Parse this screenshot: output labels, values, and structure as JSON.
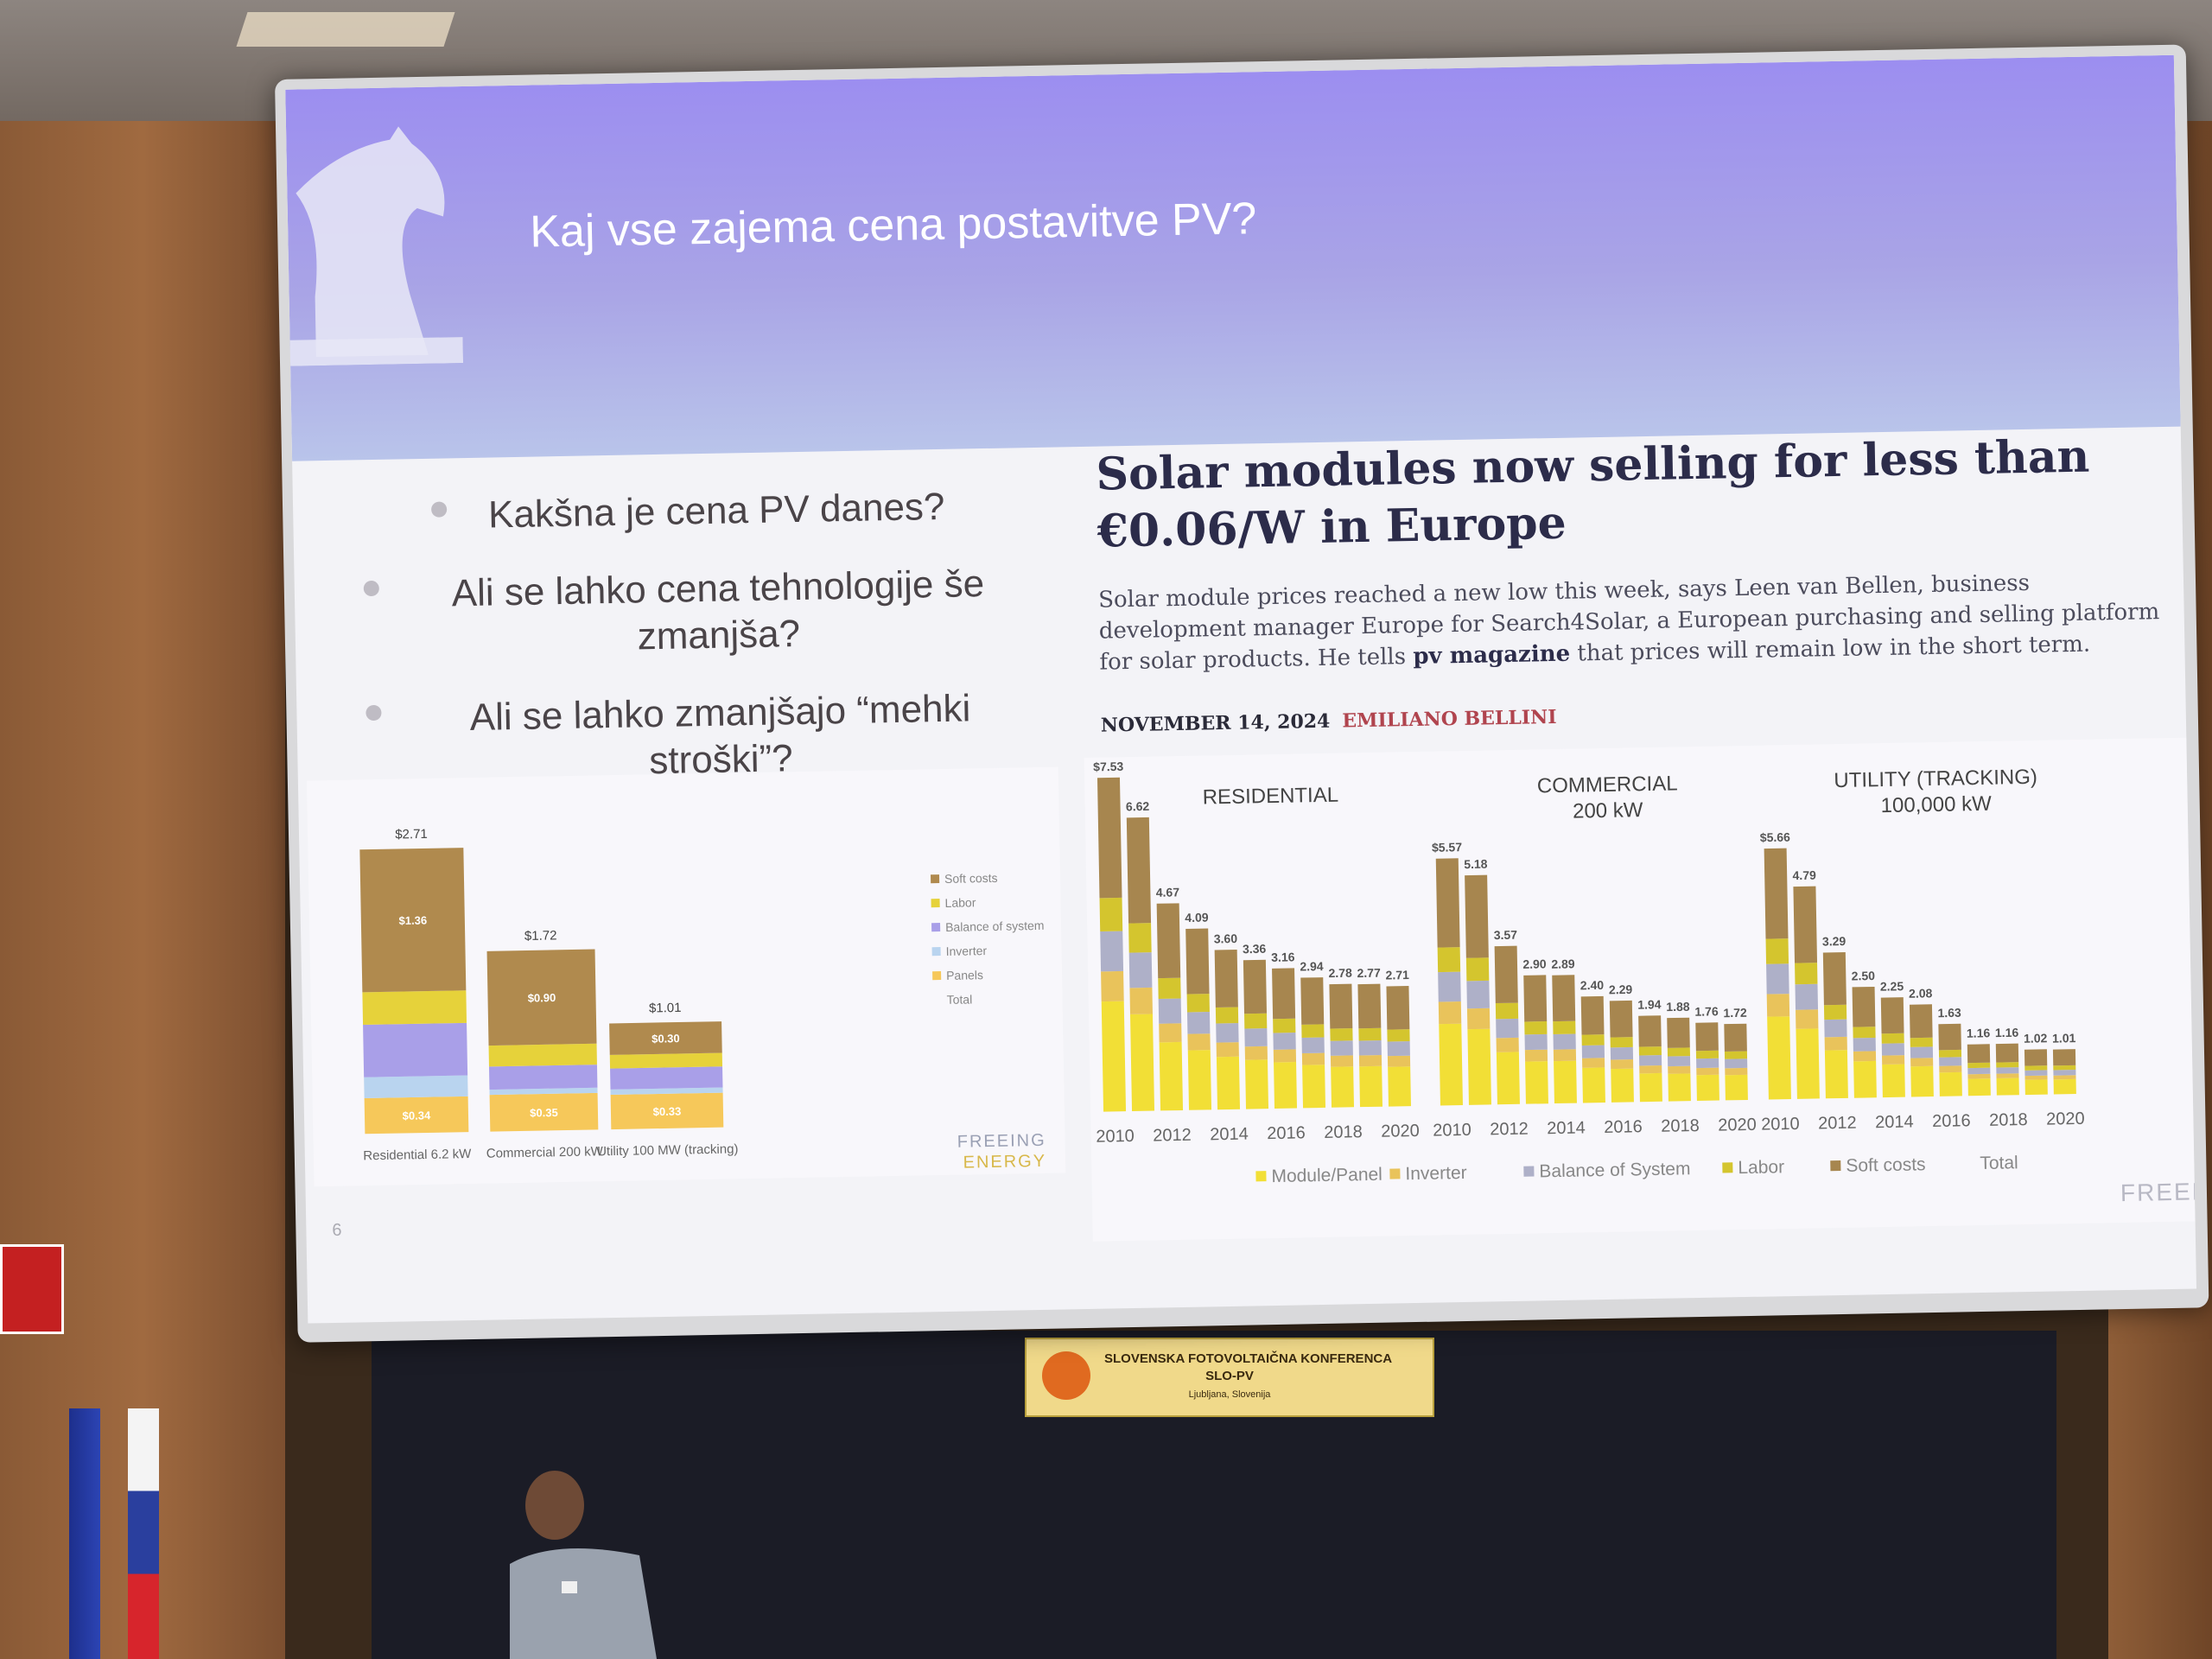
{
  "slide": {
    "title": "Kaj vse zajema cena postavitve PV?",
    "questions": [
      "Kakšna je cena PV danes?",
      "Ali se lahko cena tehnologije še zmanjša?",
      "Ali se lahko zmanjšajo “mehki stroški”?"
    ],
    "page_number": "6",
    "watermark": "FREEIN"
  },
  "news": {
    "headline": "Solar modules now selling for less than €0.06/W in Europe",
    "body_pre": "Solar module prices reached a new low this week, says Leen van Bellen, business development manager Europe for Search4Solar, a European purchasing and selling platform for solar products. He tells ",
    "body_bold": "pv magazine",
    "body_post": " that prices will remain low in the short term.",
    "date": "NOVEMBER 14, 2024",
    "author": "EMILIANO BELLINI"
  },
  "banner": {
    "line1": "SLOVENSKA FOTOVOLTAIČNA KONFERENCA",
    "line2": "SLO-PV",
    "line3": "Ljubljana, Slovenija"
  },
  "colors": {
    "soft_costs": "#b08a4e",
    "labor": "#e6d23a",
    "bos": "#a99fe8",
    "inverter": "#b9d4ef",
    "panels": "#f6c85a",
    "module": "#f2df36",
    "inverter_r": "#e9c35b",
    "bos_r": "#aeb0c8",
    "labor_r": "#d4c52e",
    "soft_r": "#a7864f"
  },
  "chart_data": [
    {
      "type": "bar",
      "stacked": true,
      "categories": [
        "Residential 6.2 kW",
        "Commercial 200 kW",
        "Utility 100 MW (tracking)"
      ],
      "totals": [
        "$2.71",
        "$1.72",
        "$1.01"
      ],
      "series": [
        {
          "name": "Panels",
          "values": [
            0.34,
            0.35,
            0.33
          ],
          "labels": [
            "$0.34",
            "$0.35",
            "$0.33"
          ]
        },
        {
          "name": "Inverter",
          "values": [
            0.2,
            0.05,
            0.05
          ],
          "labels": [
            "",
            "",
            ""
          ]
        },
        {
          "name": "Balance of system",
          "values": [
            0.5,
            0.22,
            0.2
          ],
          "labels": [
            "",
            "",
            ""
          ]
        },
        {
          "name": "Labor",
          "values": [
            0.31,
            0.2,
            0.13
          ],
          "labels": [
            "",
            "",
            ""
          ]
        },
        {
          "name": "Soft costs",
          "values": [
            1.36,
            0.9,
            0.3
          ],
          "labels": [
            "$1.36",
            "$0.90",
            "$0.30"
          ]
        }
      ],
      "legend": [
        "Soft costs",
        "Labor",
        "Balance of system",
        "Inverter",
        "Panels",
        "Total"
      ],
      "ylim": [
        0,
        2.8
      ],
      "source": "FREEING ENERGY"
    },
    {
      "type": "bar",
      "stacked": true,
      "panels": [
        {
          "title": "RESIDENTIAL",
          "totals": [
            7.53,
            6.62,
            4.67,
            4.09,
            3.6,
            3.36,
            3.16,
            2.94,
            2.78,
            2.77,
            2.71
          ],
          "total_labels": [
            "$7.53",
            "6.62",
            "4.67",
            "4.09",
            "3.60",
            "3.36",
            "3.16",
            "2.94",
            "2.78",
            "2.77",
            "2.71"
          ]
        },
        {
          "title": "COMMERCIAL",
          "subtitle": "200 kW",
          "totals": [
            5.57,
            5.18,
            3.57,
            2.9,
            2.89,
            2.4,
            2.29,
            1.94,
            1.88,
            1.76,
            1.72
          ],
          "total_labels": [
            "$5.57",
            "5.18",
            "3.57",
            "2.90",
            "2.89",
            "2.40",
            "2.29",
            "1.94",
            "1.88",
            "1.76",
            "1.72"
          ]
        },
        {
          "title": "UTILITY (TRACKING)",
          "subtitle": "100,000 kW",
          "totals": [
            5.66,
            4.79,
            3.29,
            2.5,
            2.25,
            2.08,
            1.63,
            1.16,
            1.16,
            1.02,
            1.01
          ],
          "total_labels": [
            "$5.66",
            "4.79",
            "3.29",
            "2.50",
            "2.25",
            "2.08",
            "1.63",
            "1.16",
            "1.16",
            "1.02",
            "1.01"
          ]
        }
      ],
      "x_ticks": [
        "2010",
        "2012",
        "2014",
        "2016",
        "2018",
        "2020"
      ],
      "legend": [
        "Module/Panel",
        "Inverter",
        "Balance of System",
        "Labor",
        "Soft costs",
        "Total"
      ],
      "ylim": [
        0,
        7.6
      ]
    }
  ]
}
